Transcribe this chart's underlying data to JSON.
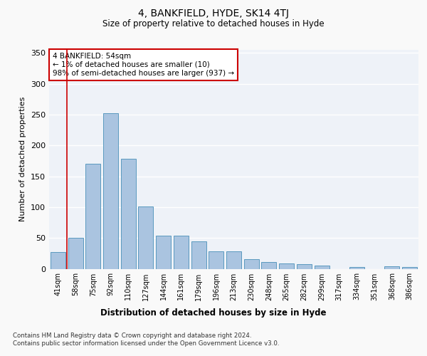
{
  "title1": "4, BANKFIELD, HYDE, SK14 4TJ",
  "title2": "Size of property relative to detached houses in Hyde",
  "xlabel": "Distribution of detached houses by size in Hyde",
  "ylabel": "Number of detached properties",
  "categories": [
    "41sqm",
    "58sqm",
    "75sqm",
    "92sqm",
    "110sqm",
    "127sqm",
    "144sqm",
    "161sqm",
    "179sqm",
    "196sqm",
    "213sqm",
    "230sqm",
    "248sqm",
    "265sqm",
    "282sqm",
    "299sqm",
    "317sqm",
    "334sqm",
    "351sqm",
    "368sqm",
    "386sqm"
  ],
  "values": [
    27,
    50,
    170,
    252,
    178,
    101,
    54,
    54,
    45,
    28,
    28,
    16,
    11,
    9,
    7,
    5,
    0,
    3,
    0,
    4,
    3
  ],
  "bar_color": "#aac4e0",
  "bar_edge_color": "#5a9abf",
  "annotation_text": "4 BANKFIELD: 54sqm\n← 1% of detached houses are smaller (10)\n98% of semi-detached houses are larger (937) →",
  "annotation_box_color": "#ffffff",
  "annotation_box_edge": "#cc0000",
  "bg_color": "#eef2f8",
  "fig_color": "#f9f9f9",
  "footer_text": "Contains HM Land Registry data © Crown copyright and database right 2024.\nContains public sector information licensed under the Open Government Licence v3.0.",
  "ylim": [
    0,
    355
  ],
  "yticks": [
    0,
    50,
    100,
    150,
    200,
    250,
    300,
    350
  ],
  "red_line_x": 0.5
}
